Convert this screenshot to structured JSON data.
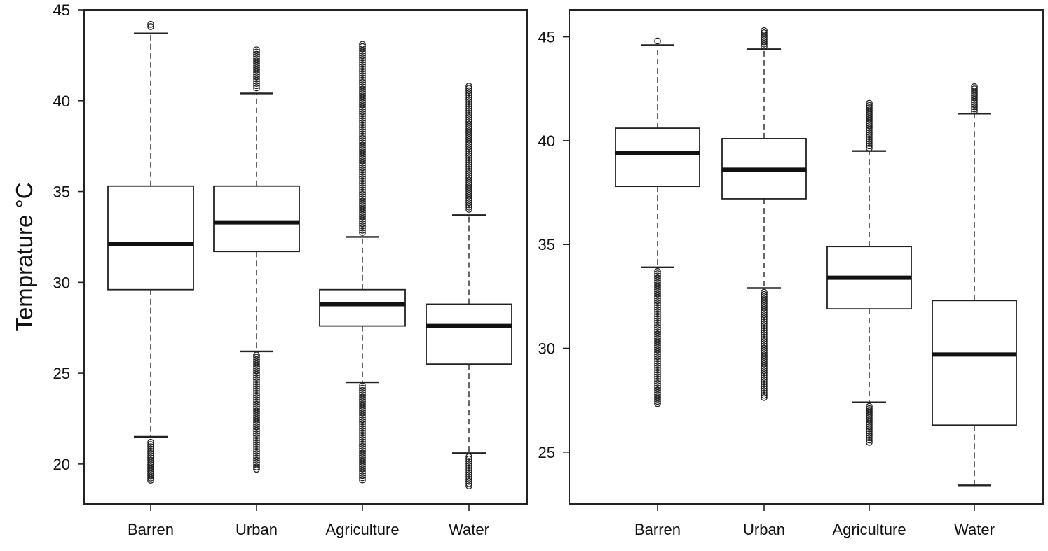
{
  "chart_data": [
    {
      "type": "boxplot",
      "ylabel": "Temprature °C",
      "categories": [
        "Barren",
        "Urban",
        "Agriculture",
        "Water"
      ],
      "ylim": [
        17.8,
        45
      ],
      "yticks": [
        20,
        25,
        30,
        35,
        40,
        45
      ],
      "boxes": [
        {
          "category": "Barren",
          "whisker_low": 21.5,
          "q1": 29.6,
          "median": 32.1,
          "q3": 35.3,
          "whisker_high": 43.7,
          "outliers_low": [
            19.1,
            21.2
          ],
          "outliers_high": [
            44.0,
            44.2
          ]
        },
        {
          "category": "Urban",
          "whisker_low": 26.2,
          "q1": 31.7,
          "median": 33.3,
          "q3": 35.3,
          "whisker_high": 40.4,
          "outliers_low": [
            19.6,
            26.0
          ],
          "outliers_high": [
            40.6,
            42.8
          ]
        },
        {
          "category": "Agriculture",
          "whisker_low": 24.5,
          "q1": 27.6,
          "median": 28.8,
          "q3": 29.6,
          "whisker_high": 32.5,
          "outliers_low": [
            19.1,
            24.3
          ],
          "outliers_high": [
            32.7,
            43.1
          ]
        },
        {
          "category": "Water",
          "whisker_low": 20.6,
          "q1": 25.5,
          "median": 27.6,
          "q3": 28.8,
          "whisker_high": 33.7,
          "outliers_low": [
            18.7,
            20.4
          ],
          "outliers_high": [
            33.9,
            40.8
          ]
        }
      ]
    },
    {
      "type": "boxplot",
      "ylabel": "",
      "categories": [
        "Barren",
        "Urban",
        "Agriculture",
        "Water"
      ],
      "ylim": [
        22.5,
        46.3
      ],
      "yticks": [
        25,
        30,
        35,
        40,
        45
      ],
      "boxes": [
        {
          "category": "Barren",
          "whisker_low": 33.9,
          "q1": 37.8,
          "median": 39.4,
          "q3": 40.6,
          "whisker_high": 44.6,
          "outliers_low": [
            27.3,
            33.7
          ],
          "outliers_high": [
            44.8,
            44.8
          ]
        },
        {
          "category": "Urban",
          "whisker_low": 32.9,
          "q1": 37.2,
          "median": 38.6,
          "q3": 40.1,
          "whisker_high": 44.4,
          "outliers_low": [
            27.6,
            32.7
          ],
          "outliers_high": [
            44.5,
            45.3
          ]
        },
        {
          "category": "Agriculture",
          "whisker_low": 27.4,
          "q1": 31.9,
          "median": 33.4,
          "q3": 34.9,
          "whisker_high": 39.5,
          "outliers_low": [
            25.4,
            27.2
          ],
          "outliers_high": [
            39.6,
            41.8
          ]
        },
        {
          "category": "Water",
          "whisker_low": 23.4,
          "q1": 26.3,
          "median": 29.7,
          "q3": 32.3,
          "whisker_high": 41.3,
          "outliers_low": [],
          "outliers_high": [
            41.4,
            42.6
          ]
        }
      ]
    }
  ]
}
